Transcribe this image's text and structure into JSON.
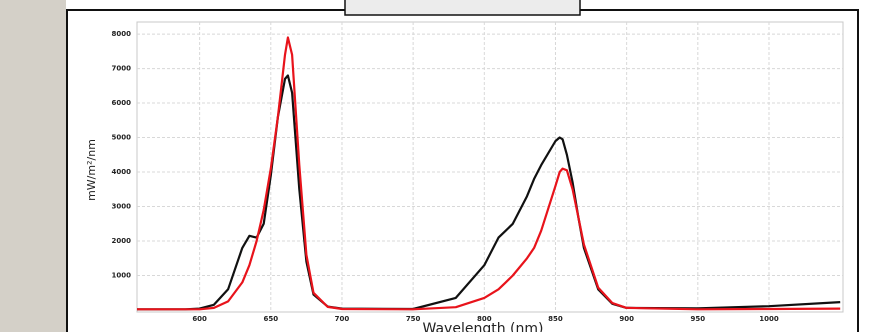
{
  "chart_data": {
    "type": "line",
    "x_label": "Wavelength (nm)",
    "y_label": "mW/m²/nm",
    "x": [
      556,
      590,
      600,
      610,
      620,
      630,
      635,
      640,
      645,
      650,
      655,
      660,
      662,
      665,
      670,
      675,
      680,
      690,
      700,
      750,
      780,
      800,
      810,
      815,
      820,
      830,
      835,
      840,
      850,
      853,
      855,
      858,
      862,
      866,
      870,
      880,
      890,
      900,
      950,
      1000,
      1050
    ],
    "series": [
      {
        "color": "#111111",
        "values": [
          20,
          20,
          40,
          150,
          600,
          1800,
          2150,
          2100,
          2500,
          3900,
          5600,
          6700,
          6800,
          6300,
          3500,
          1400,
          450,
          100,
          40,
          30,
          350,
          1300,
          2100,
          2300,
          2500,
          3300,
          3800,
          4200,
          4900,
          5000,
          4950,
          4500,
          3700,
          2700,
          1800,
          600,
          180,
          60,
          50,
          110,
          230
        ]
      },
      {
        "color": "#e8131b",
        "values": [
          20,
          20,
          20,
          60,
          250,
          800,
          1300,
          2000,
          2900,
          4100,
          5600,
          7400,
          7900,
          7400,
          4200,
          1600,
          500,
          90,
          30,
          20,
          80,
          350,
          600,
          800,
          1000,
          1500,
          1800,
          2300,
          3600,
          4000,
          4100,
          4050,
          3500,
          2700,
          1900,
          650,
          200,
          60,
          20,
          30,
          40
        ]
      }
    ],
    "xlim": [
      556,
      1052
    ],
    "ylim": [
      0,
      8350
    ],
    "xticks": [
      600,
      650,
      700,
      750,
      800,
      850,
      900,
      950,
      1000
    ],
    "yticks": [
      1000,
      2000,
      3000,
      4000,
      5000,
      6000,
      7000,
      8000
    ],
    "grid": true
  }
}
